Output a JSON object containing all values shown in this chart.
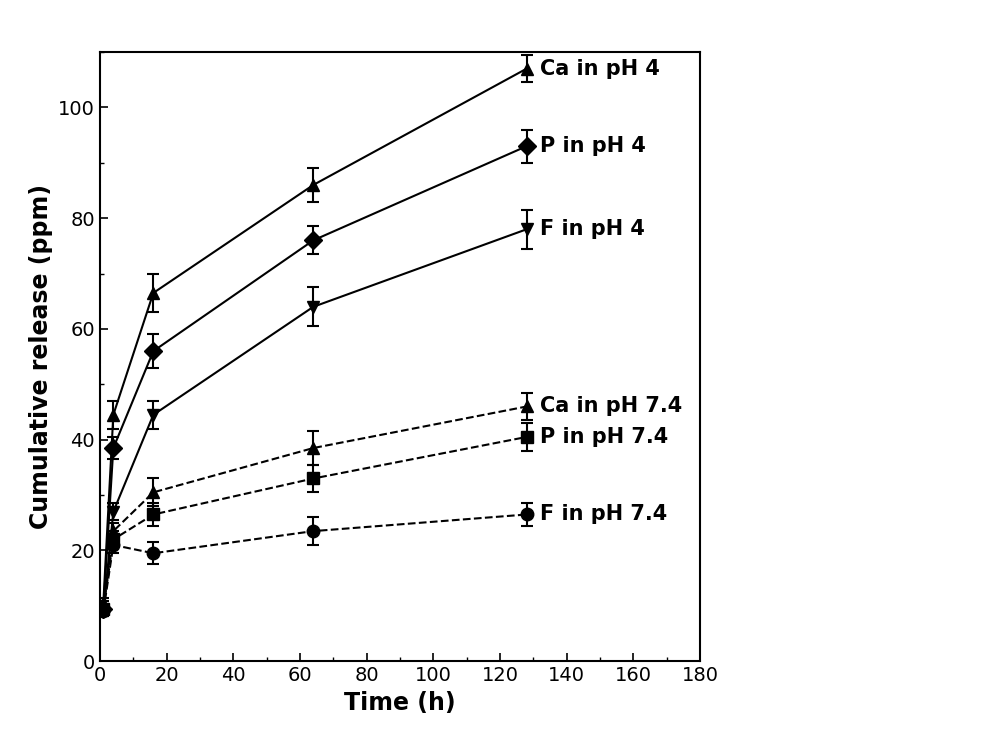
{
  "title": "",
  "xlabel": "Time (h)",
  "ylabel": "Cumulative release (ppm)",
  "xlim": [
    0,
    180
  ],
  "ylim": [
    0,
    110
  ],
  "xticks": [
    0,
    20,
    40,
    60,
    80,
    100,
    120,
    140,
    160,
    180
  ],
  "yticks": [
    0,
    20,
    40,
    60,
    80,
    100
  ],
  "series": [
    {
      "label": "Ca in pH 4",
      "x": [
        1,
        4,
        16,
        64,
        128
      ],
      "y": [
        10.5,
        44.5,
        66.5,
        86.0,
        107.0
      ],
      "yerr": [
        1.0,
        2.5,
        3.5,
        3.0,
        2.5
      ],
      "marker": "^",
      "color": "black",
      "linestyle": "-",
      "markersize": 9
    },
    {
      "label": "P in pH 4",
      "x": [
        1,
        4,
        16,
        64,
        128
      ],
      "y": [
        9.5,
        38.5,
        56.0,
        76.0,
        93.0
      ],
      "yerr": [
        0.8,
        2.0,
        3.0,
        2.5,
        3.0
      ],
      "marker": "D",
      "color": "black",
      "linestyle": "-",
      "markersize": 9
    },
    {
      "label": "F in pH 4",
      "x": [
        1,
        4,
        16,
        64,
        128
      ],
      "y": [
        9.0,
        27.0,
        44.5,
        64.0,
        78.0
      ],
      "yerr": [
        0.8,
        1.5,
        2.5,
        3.5,
        3.5
      ],
      "marker": "v",
      "color": "black",
      "linestyle": "-",
      "markersize": 9
    },
    {
      "label": "Ca in pH 7.4",
      "x": [
        1,
        4,
        16,
        64,
        128
      ],
      "y": [
        10.0,
        23.5,
        30.5,
        38.5,
        46.0
      ],
      "yerr": [
        0.8,
        1.5,
        2.5,
        3.0,
        2.5
      ],
      "marker": "^",
      "color": "black",
      "linestyle": "--",
      "markersize": 9
    },
    {
      "label": "P in pH 7.4",
      "x": [
        1,
        4,
        16,
        64,
        128
      ],
      "y": [
        9.5,
        22.0,
        26.5,
        33.0,
        40.5
      ],
      "yerr": [
        0.8,
        1.5,
        2.0,
        2.5,
        2.5
      ],
      "marker": "s",
      "color": "black",
      "linestyle": "--",
      "markersize": 9
    },
    {
      "label": "F in pH 7.4",
      "x": [
        1,
        4,
        16,
        64,
        128
      ],
      "y": [
        9.0,
        21.0,
        19.5,
        23.5,
        26.5
      ],
      "yerr": [
        0.8,
        1.5,
        2.0,
        2.5,
        2.0
      ],
      "marker": "o",
      "color": "black",
      "linestyle": "--",
      "markersize": 9
    }
  ],
  "legend_items": [
    {
      "label": "Ca in pH 4",
      "y": 107.0
    },
    {
      "label": "P in pH 4",
      "y": 93.0
    },
    {
      "label": "F in pH 4",
      "y": 78.0
    },
    {
      "label": "Ca in pH 7.4",
      "y": 46.0
    },
    {
      "label": "P in pH 7.4",
      "y": 40.5
    },
    {
      "label": "F in pH 7.4",
      "y": 26.5
    }
  ],
  "background_color": "#ffffff",
  "fontsize_labels": 17,
  "fontsize_ticks": 14,
  "fontsize_legend": 15
}
